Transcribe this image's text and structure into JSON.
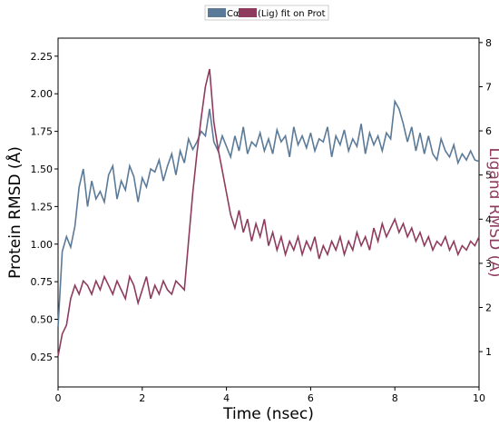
{
  "chart_data": {
    "type": "line",
    "xlabel": "Time (nsec)",
    "ylabel_left": "Protein RMSD (Å)",
    "ylabel_right": "Ligand RMSD (Å)",
    "xlim": [
      0,
      10
    ],
    "ylim_left": [
      0.05,
      2.37
    ],
    "ylim_right": [
      0.2,
      8.1
    ],
    "x_ticks": [
      0,
      2,
      4,
      6,
      8,
      10
    ],
    "y_ticks_left": [
      0.25,
      0.5,
      0.75,
      1.0,
      1.25,
      1.5,
      1.75,
      2.0,
      2.25
    ],
    "y_ticks_right": [
      1,
      2,
      3,
      4,
      5,
      6,
      7,
      8
    ],
    "x_tick_labels": [
      "0",
      "2",
      "4",
      "6",
      "8",
      "10"
    ],
    "y_tick_labels_left": [
      "0.25",
      "0.50",
      "0.75",
      "1.00",
      "1.25",
      "1.50",
      "1.75",
      "2.00",
      "2.25"
    ],
    "y_tick_labels_right": [
      "1",
      "2",
      "3",
      "4",
      "5",
      "6",
      "7",
      "8"
    ],
    "legend_position": "top-center",
    "grid": false,
    "series": [
      {
        "name": "Cα",
        "axis": "left",
        "color": "#5b7a98",
        "x": [
          0,
          0.1,
          0.2,
          0.3,
          0.4,
          0.5,
          0.6,
          0.7,
          0.8,
          0.9,
          1.0,
          1.1,
          1.2,
          1.3,
          1.4,
          1.5,
          1.6,
          1.7,
          1.8,
          1.9,
          2.0,
          2.1,
          2.2,
          2.3,
          2.4,
          2.5,
          2.6,
          2.7,
          2.8,
          2.9,
          3.0,
          3.1,
          3.2,
          3.3,
          3.4,
          3.5,
          3.6,
          3.7,
          3.8,
          3.9,
          4.0,
          4.1,
          4.2,
          4.3,
          4.4,
          4.5,
          4.6,
          4.7,
          4.8,
          4.9,
          5.0,
          5.1,
          5.2,
          5.3,
          5.4,
          5.5,
          5.6,
          5.7,
          5.8,
          5.9,
          6.0,
          6.1,
          6.2,
          6.3,
          6.4,
          6.5,
          6.6,
          6.7,
          6.8,
          6.9,
          7.0,
          7.1,
          7.2,
          7.3,
          7.4,
          7.5,
          7.6,
          7.7,
          7.8,
          7.9,
          8.0,
          8.1,
          8.2,
          8.3,
          8.4,
          8.5,
          8.6,
          8.7,
          8.8,
          8.9,
          9.0,
          9.1,
          9.2,
          9.3,
          9.4,
          9.5,
          9.6,
          9.7,
          9.8,
          9.9,
          10.0
        ],
        "y": [
          0.45,
          0.95,
          1.05,
          0.98,
          1.12,
          1.38,
          1.5,
          1.25,
          1.42,
          1.3,
          1.35,
          1.28,
          1.46,
          1.52,
          1.3,
          1.42,
          1.36,
          1.52,
          1.45,
          1.28,
          1.44,
          1.38,
          1.5,
          1.48,
          1.56,
          1.42,
          1.52,
          1.6,
          1.46,
          1.62,
          1.54,
          1.7,
          1.63,
          1.68,
          1.75,
          1.72,
          1.9,
          1.68,
          1.62,
          1.72,
          1.65,
          1.58,
          1.72,
          1.62,
          1.78,
          1.6,
          1.68,
          1.65,
          1.74,
          1.62,
          1.7,
          1.6,
          1.76,
          1.68,
          1.72,
          1.58,
          1.78,
          1.66,
          1.72,
          1.64,
          1.74,
          1.62,
          1.7,
          1.68,
          1.78,
          1.58,
          1.72,
          1.66,
          1.76,
          1.62,
          1.7,
          1.65,
          1.8,
          1.6,
          1.74,
          1.66,
          1.72,
          1.62,
          1.74,
          1.7,
          1.95,
          1.9,
          1.8,
          1.68,
          1.78,
          1.62,
          1.74,
          1.6,
          1.72,
          1.6,
          1.56,
          1.7,
          1.62,
          1.58,
          1.66,
          1.54,
          1.6,
          1.56,
          1.62,
          1.56,
          1.55
        ]
      },
      {
        "name": "(Lig) fit on Prot",
        "axis": "right",
        "color": "#8e3b5e",
        "x": [
          0,
          0.1,
          0.2,
          0.3,
          0.4,
          0.5,
          0.6,
          0.7,
          0.8,
          0.9,
          1.0,
          1.1,
          1.2,
          1.3,
          1.4,
          1.5,
          1.6,
          1.7,
          1.8,
          1.9,
          2.0,
          2.1,
          2.2,
          2.3,
          2.4,
          2.5,
          2.6,
          2.7,
          2.8,
          2.9,
          3.0,
          3.1,
          3.2,
          3.3,
          3.4,
          3.5,
          3.6,
          3.7,
          3.8,
          3.9,
          4.0,
          4.1,
          4.2,
          4.3,
          4.4,
          4.5,
          4.6,
          4.7,
          4.8,
          4.9,
          5.0,
          5.1,
          5.2,
          5.3,
          5.4,
          5.5,
          5.6,
          5.7,
          5.8,
          5.9,
          6.0,
          6.1,
          6.2,
          6.3,
          6.4,
          6.5,
          6.6,
          6.7,
          6.8,
          6.9,
          7.0,
          7.1,
          7.2,
          7.3,
          7.4,
          7.5,
          7.6,
          7.7,
          7.8,
          7.9,
          8.0,
          8.1,
          8.2,
          8.3,
          8.4,
          8.5,
          8.6,
          8.7,
          8.8,
          8.9,
          9.0,
          9.1,
          9.2,
          9.3,
          9.4,
          9.5,
          9.6,
          9.7,
          9.8,
          9.9,
          10.0
        ],
        "y": [
          0.9,
          1.4,
          1.6,
          2.2,
          2.5,
          2.3,
          2.6,
          2.5,
          2.3,
          2.6,
          2.4,
          2.7,
          2.5,
          2.3,
          2.6,
          2.4,
          2.2,
          2.7,
          2.5,
          2.1,
          2.4,
          2.7,
          2.2,
          2.5,
          2.3,
          2.6,
          2.4,
          2.3,
          2.6,
          2.5,
          2.4,
          3.5,
          4.6,
          5.5,
          6.3,
          7.0,
          7.4,
          6.2,
          5.6,
          5.1,
          4.6,
          4.1,
          3.8,
          4.2,
          3.7,
          4.0,
          3.5,
          3.9,
          3.6,
          4.0,
          3.4,
          3.7,
          3.3,
          3.6,
          3.2,
          3.5,
          3.3,
          3.6,
          3.2,
          3.5,
          3.3,
          3.6,
          3.1,
          3.4,
          3.2,
          3.5,
          3.3,
          3.6,
          3.2,
          3.5,
          3.3,
          3.7,
          3.4,
          3.6,
          3.3,
          3.8,
          3.5,
          3.9,
          3.6,
          3.8,
          4.0,
          3.7,
          3.9,
          3.6,
          3.8,
          3.5,
          3.7,
          3.4,
          3.6,
          3.3,
          3.5,
          3.4,
          3.6,
          3.3,
          3.5,
          3.2,
          3.4,
          3.3,
          3.5,
          3.4,
          3.6
        ]
      }
    ]
  }
}
